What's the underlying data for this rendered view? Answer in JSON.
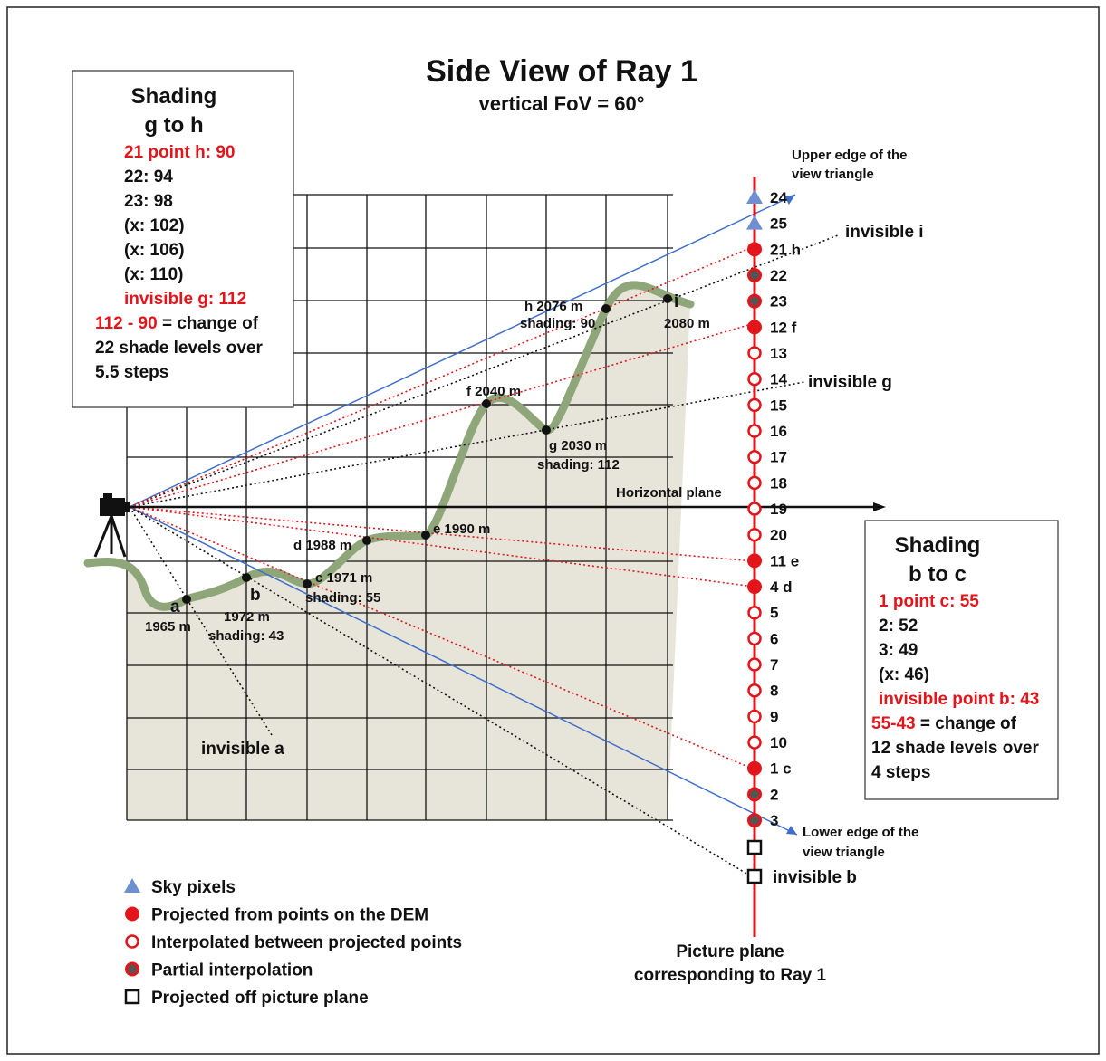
{
  "title": "Side View of Ray 1",
  "subtitle": "vertical FoV = 60°",
  "left_box": {
    "heading": [
      "Shading",
      "g to h"
    ],
    "lines": [
      {
        "parts": [
          {
            "text": "21 point h: 90",
            "color": "#e3151a"
          }
        ]
      },
      {
        "parts": [
          {
            "text": "22: 94"
          }
        ]
      },
      {
        "parts": [
          {
            "text": "23: 98"
          }
        ]
      },
      {
        "parts": [
          {
            "text": "(x: 102)"
          }
        ]
      },
      {
        "parts": [
          {
            "text": "(x: 106)"
          }
        ]
      },
      {
        "parts": [
          {
            "text": "(x: 110)"
          }
        ]
      },
      {
        "parts": [
          {
            "text": "invisible g: 112",
            "color": "#e3151a"
          }
        ]
      },
      {
        "parts": [
          {
            "text": "112 - 90",
            "color": "#e3151a"
          },
          {
            "text": " = change of"
          }
        ]
      },
      {
        "parts": [
          {
            "text": "22 shade levels over"
          }
        ]
      },
      {
        "parts": [
          {
            "text": "5.5 steps"
          }
        ]
      }
    ]
  },
  "right_box": {
    "heading": [
      "Shading",
      "b to c"
    ],
    "lines": [
      {
        "parts": [
          {
            "text": "1 point c: 55",
            "color": "#e3151a"
          }
        ]
      },
      {
        "parts": [
          {
            "text": "2: 52"
          }
        ]
      },
      {
        "parts": [
          {
            "text": "3: 49"
          }
        ]
      },
      {
        "parts": [
          {
            "text": "(x: 46)"
          }
        ]
      },
      {
        "parts": [
          {
            "text": "invisible point b: 43",
            "color": "#e3151a"
          }
        ]
      },
      {
        "parts": [
          {
            "text": "55-43",
            "color": "#e3151a"
          },
          {
            "text": " = change of"
          }
        ]
      },
      {
        "parts": [
          {
            "text": "12 shade levels over"
          }
        ]
      },
      {
        "parts": [
          {
            "text": "4 steps"
          }
        ]
      }
    ]
  },
  "terrain_labels": [
    {
      "text": "a"
    },
    {
      "text": "1965 m"
    },
    {
      "text": "b"
    },
    {
      "text": "1972 m"
    },
    {
      "text": "shading: 43",
      "color": "#e3151a"
    },
    {
      "text": "c 1971 m"
    },
    {
      "text": "shading: 55",
      "color": "#e3151a"
    },
    {
      "text": "d 1988 m"
    },
    {
      "text": "e 1990 m"
    },
    {
      "text": "f 2040 m"
    },
    {
      "text": "g 2030 m"
    },
    {
      "text": "shading: 112",
      "color": "#e3151a"
    },
    {
      "text": "h 2076 m"
    },
    {
      "text": "shading: 90",
      "color": "#e3151a"
    },
    {
      "text": "i"
    },
    {
      "text": "2080 m"
    }
  ],
  "annotations": {
    "upper_edge": [
      "Upper edge of the",
      "view triangle"
    ],
    "lower_edge": [
      "Lower edge of the",
      "view triangle"
    ],
    "horizontal_plane": "Horizontal plane",
    "invisible_i": "invisible i",
    "invisible_g": "invisible g",
    "invisible_a": "invisible a",
    "invisible_b": "invisible b"
  },
  "pixels": [
    {
      "label": "24",
      "kind": "sky"
    },
    {
      "label": "25",
      "kind": "sky"
    },
    {
      "label": "21 h",
      "kind": "projected"
    },
    {
      "label": "22",
      "kind": "partial"
    },
    {
      "label": "23",
      "kind": "partial"
    },
    {
      "label": "12 f",
      "kind": "projected"
    },
    {
      "label": "13",
      "kind": "interpolated"
    },
    {
      "label": "14",
      "kind": "interpolated"
    },
    {
      "label": "15",
      "kind": "interpolated"
    },
    {
      "label": "16",
      "kind": "interpolated"
    },
    {
      "label": "17",
      "kind": "interpolated"
    },
    {
      "label": "18",
      "kind": "interpolated"
    },
    {
      "label": "19",
      "kind": "interpolated"
    },
    {
      "label": "20",
      "kind": "interpolated"
    },
    {
      "label": "11 e",
      "kind": "projected"
    },
    {
      "label": "4 d",
      "kind": "projected"
    },
    {
      "label": "5",
      "kind": "interpolated"
    },
    {
      "label": "6",
      "kind": "interpolated"
    },
    {
      "label": "7",
      "kind": "interpolated"
    },
    {
      "label": "8",
      "kind": "interpolated"
    },
    {
      "label": "9",
      "kind": "interpolated"
    },
    {
      "label": "10",
      "kind": "interpolated"
    },
    {
      "label": "1 c",
      "kind": "projected"
    },
    {
      "label": "2",
      "kind": "partial"
    },
    {
      "label": "3",
      "kind": "partial"
    }
  ],
  "legend": [
    {
      "kind": "sky",
      "label": "Sky pixels"
    },
    {
      "kind": "projected",
      "label": "Projected from points on the DEM"
    },
    {
      "kind": "interpolated",
      "label": "Interpolated between projected points"
    },
    {
      "kind": "partial",
      "label": "Partial interpolation"
    },
    {
      "kind": "off",
      "label": "Projected off picture plane"
    }
  ],
  "caption": [
    "Picture plane",
    "corresponding to Ray 1"
  ]
}
